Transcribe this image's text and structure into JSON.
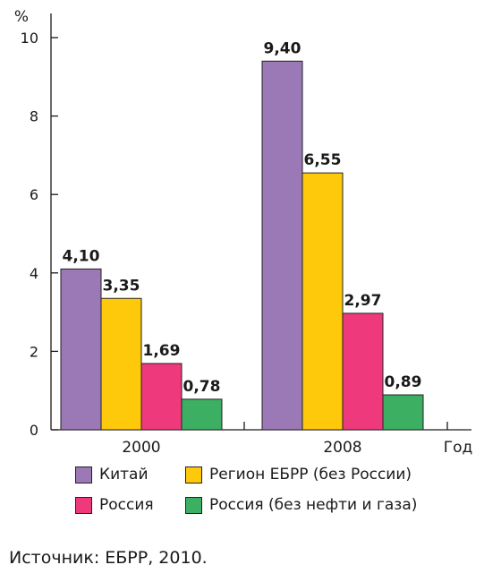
{
  "chart_data": {
    "type": "bar",
    "unit_label": "%",
    "x_axis_label": "Год",
    "categories": [
      "2000",
      "2008"
    ],
    "series": [
      {
        "name": "Китай",
        "values": [
          4.1,
          9.4
        ],
        "labels": [
          "4,10",
          "9,40"
        ],
        "color": "#9b78b6"
      },
      {
        "name": "Регион ЕБРР (без России)",
        "values": [
          3.35,
          6.55
        ],
        "labels": [
          "3,35",
          "6,55"
        ],
        "color": "#fec80b"
      },
      {
        "name": "Россия",
        "values": [
          1.69,
          2.97
        ],
        "labels": [
          "1,69",
          "2,97"
        ],
        "color": "#ee3a7c"
      },
      {
        "name": "Россия (без нефти и газа)",
        "values": [
          0.78,
          0.89
        ],
        "labels": [
          "0,78",
          "0,89"
        ],
        "color": "#3daf63"
      }
    ],
    "ylim": [
      0,
      10
    ],
    "yticks": [
      0,
      2,
      4,
      6,
      8,
      10
    ],
    "grid": false,
    "legend_position": "bottom"
  },
  "source_text": "Источник: ЕБРР, 2010."
}
